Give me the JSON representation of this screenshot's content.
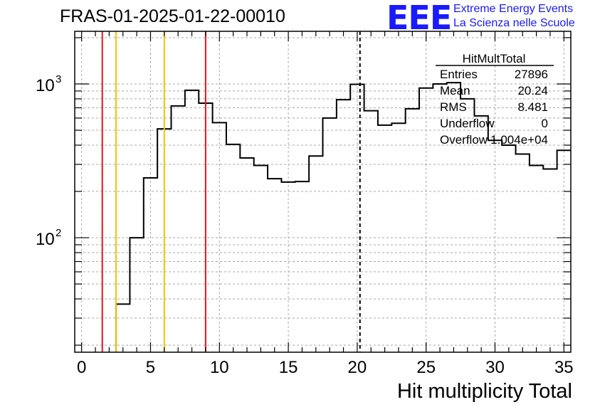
{
  "title": "FRAS-01-2025-01-22-00010",
  "logo": {
    "mark": "EEE",
    "line1": "Extreme Energy Events",
    "line2": "La Scienza nelle Scuole"
  },
  "colors": {
    "histogram": "#000000",
    "logo": "#1a1aff",
    "red_marker": "#e8141e",
    "yellow_marker": "#f2c200",
    "grid": "#a8a8a8"
  },
  "stats": {
    "name": "HitMultTotal",
    "rows": [
      {
        "label": "Entries",
        "value": "27896"
      },
      {
        "label": "Mean",
        "value": "20.24"
      },
      {
        "label": "RMS",
        "value": "8.481"
      },
      {
        "label": "Underflow",
        "value": "0"
      },
      {
        "label": "Overflow",
        "value": "1.004e+04"
      }
    ]
  },
  "chart_data": {
    "type": "histogram",
    "xlabel": "Hit multiplicity Total",
    "xlim": [
      -0.5,
      35.5
    ],
    "ylim": [
      18,
      2200
    ],
    "yscale": "log",
    "grid": true,
    "x_ticks": [
      0,
      5,
      10,
      15,
      20,
      25,
      30,
      35
    ],
    "y_ticks": [
      {
        "value": 100,
        "base": "10",
        "exp": "2"
      },
      {
        "value": 1000,
        "base": "10",
        "exp": "3"
      }
    ],
    "bin_width": 1,
    "bins": [
      {
        "x": 3,
        "y": 37
      },
      {
        "x": 4,
        "y": 100
      },
      {
        "x": 5,
        "y": 245
      },
      {
        "x": 6,
        "y": 510
      },
      {
        "x": 7,
        "y": 720
      },
      {
        "x": 8,
        "y": 910
      },
      {
        "x": 9,
        "y": 750
      },
      {
        "x": 10,
        "y": 560
      },
      {
        "x": 11,
        "y": 405
      },
      {
        "x": 12,
        "y": 330
      },
      {
        "x": 13,
        "y": 295
      },
      {
        "x": 14,
        "y": 242
      },
      {
        "x": 15,
        "y": 230
      },
      {
        "x": 16,
        "y": 232
      },
      {
        "x": 17,
        "y": 340
      },
      {
        "x": 18,
        "y": 600
      },
      {
        "x": 19,
        "y": 790
      },
      {
        "x": 20,
        "y": 995
      },
      {
        "x": 21,
        "y": 670
      },
      {
        "x": 22,
        "y": 540
      },
      {
        "x": 23,
        "y": 555
      },
      {
        "x": 24,
        "y": 690
      },
      {
        "x": 25,
        "y": 940
      },
      {
        "x": 26,
        "y": 1000
      },
      {
        "x": 27,
        "y": 1020
      },
      {
        "x": 28,
        "y": 800
      },
      {
        "x": 29,
        "y": 620
      },
      {
        "x": 30,
        "y": 430
      },
      {
        "x": 31,
        "y": 400
      },
      {
        "x": 32,
        "y": 350
      },
      {
        "x": 33,
        "y": 295
      },
      {
        "x": 34,
        "y": 280
      },
      {
        "x": 35,
        "y": 370
      }
    ],
    "marker_lines": [
      {
        "x": 1.5,
        "color": "red",
        "style": "solid"
      },
      {
        "x": 2.5,
        "color": "yellow",
        "style": "solid"
      },
      {
        "x": 6.0,
        "color": "yellow",
        "style": "solid"
      },
      {
        "x": 9.0,
        "color": "red",
        "style": "solid"
      },
      {
        "x": 20.2,
        "color": "black",
        "style": "dashed"
      }
    ]
  }
}
